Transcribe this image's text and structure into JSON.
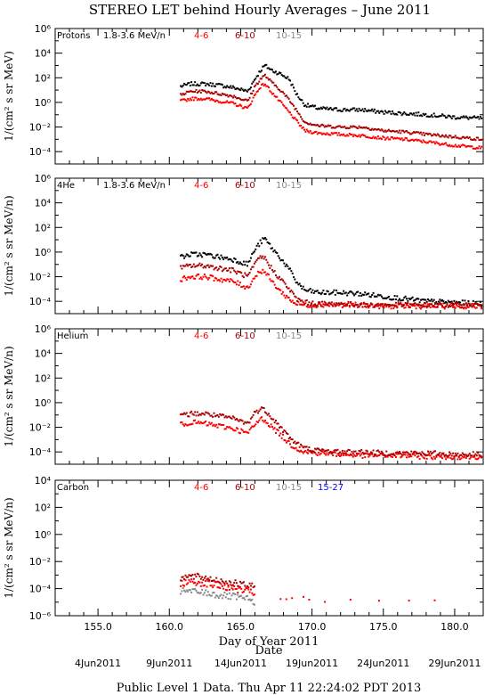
{
  "title": "STEREO LET behind Hourly Averages – June 2011",
  "footer": "Public Level 1 Data. Thu Apr 11 22:24:02 PDT 2013",
  "colors": {
    "ch1": "#000000",
    "ch2": "#ff0000",
    "ch3": "#aa0000",
    "ch4": "#888888",
    "ch5": "#0000ff"
  },
  "chart_data": [
    {
      "type": "scatter",
      "species": "Protons",
      "log_y": true,
      "ylim_exp": [
        -5,
        6
      ],
      "ytick_labels": [
        "10⁻⁴",
        "10⁻²",
        "10⁰",
        "10²",
        "10⁴",
        "10⁶"
      ],
      "ylabel": "1/(cm² s sr MeV)",
      "xlim": [
        152,
        182
      ],
      "legend": [
        {
          "label": "1.8-3.6 MeV/n",
          "color": "#000000"
        },
        {
          "label": "4-6",
          "color": "#ff0000"
        },
        {
          "label": "6-10",
          "color": "#aa0000"
        },
        {
          "label": "10-15",
          "color": "#888888"
        }
      ],
      "series": [
        {
          "name": "1.8-3.6 MeV/n",
          "color": "#000000",
          "scatter": 0.15,
          "x": [
            160.8,
            161.5,
            162.5,
            163.5,
            164.5,
            165.5,
            166.0,
            166.4,
            166.7,
            167.2,
            167.8,
            168.4,
            168.9,
            169.5,
            170.5,
            172.0,
            173.5,
            175.0,
            176.5,
            178.0,
            180.0,
            181.9
          ],
          "log10": [
            1.3,
            1.5,
            1.5,
            1.4,
            1.2,
            0.9,
            1.9,
            2.6,
            3.0,
            2.6,
            2.3,
            1.9,
            0.7,
            -0.2,
            -0.5,
            -0.6,
            -0.6,
            -0.8,
            -0.9,
            -1.0,
            -1.2,
            -1.3
          ]
        },
        {
          "name": "4-6",
          "color": "#ff0000",
          "scatter": 0.12,
          "x": [
            160.8,
            161.5,
            162.5,
            163.5,
            164.5,
            165.5,
            166.0,
            166.4,
            166.7,
            167.2,
            167.8,
            168.4,
            168.9,
            169.5,
            170.5,
            172.0,
            173.5,
            175.0,
            176.5,
            178.0,
            180.0,
            181.9
          ],
          "log10": [
            0.1,
            0.3,
            0.3,
            0.1,
            -0.1,
            -0.5,
            0.6,
            1.3,
            1.5,
            0.8,
            0.0,
            -0.8,
            -1.5,
            -2.3,
            -2.5,
            -2.6,
            -2.7,
            -2.9,
            -3.0,
            -3.2,
            -3.5,
            -3.7
          ]
        },
        {
          "name": "6-10",
          "color": "#aa0000",
          "scatter": 0.12,
          "x": [
            160.8,
            161.5,
            162.5,
            163.5,
            164.5,
            165.5,
            166.0,
            166.4,
            166.7,
            167.2,
            167.8,
            168.4,
            168.9,
            169.5,
            170.5,
            172.0,
            173.5,
            175.0,
            176.5,
            178.0,
            180.0,
            181.9
          ],
          "log10": [
            0.6,
            0.9,
            0.9,
            0.7,
            0.5,
            0.1,
            1.3,
            1.9,
            2.2,
            1.6,
            1.0,
            0.2,
            -0.6,
            -1.6,
            -1.9,
            -2.0,
            -2.0,
            -2.3,
            -2.4,
            -2.6,
            -2.8,
            -3.0
          ]
        }
      ]
    },
    {
      "type": "scatter",
      "species": "4He",
      "log_y": true,
      "ylim_exp": [
        -5,
        6
      ],
      "ytick_labels": [
        "10⁻⁴",
        "10⁻²",
        "10⁰",
        "10²",
        "10⁴",
        "10⁶"
      ],
      "ylabel": "1/(cm² s sr MeV/n)",
      "xlim": [
        152,
        182
      ],
      "legend": [
        {
          "label": "1.8-3.6 MeV/n",
          "color": "#000000"
        },
        {
          "label": "4-6",
          "color": "#ff0000"
        },
        {
          "label": "6-10",
          "color": "#aa0000"
        },
        {
          "label": "10-15",
          "color": "#888888"
        }
      ],
      "series": [
        {
          "name": "1.8-3.6 MeV/n",
          "color": "#000000",
          "scatter": 0.2,
          "x": [
            160.8,
            161.5,
            162.5,
            163.5,
            164.5,
            165.5,
            166.0,
            166.4,
            166.7,
            167.2,
            167.8,
            168.4,
            168.9,
            169.5,
            170.5,
            172.0,
            173.5,
            175.0,
            176.5,
            178.0,
            180.0,
            181.9
          ],
          "log10": [
            -0.4,
            -0.2,
            -0.2,
            -0.4,
            -0.6,
            -1.0,
            0.2,
            0.8,
            1.1,
            0.3,
            -0.5,
            -1.4,
            -2.4,
            -3.1,
            -3.3,
            -3.3,
            -3.4,
            -3.6,
            -3.8,
            -4.0,
            -4.1,
            -4.2
          ]
        },
        {
          "name": "4-6",
          "color": "#ff0000",
          "scatter": 0.2,
          "x": [
            160.8,
            161.5,
            162.5,
            163.5,
            164.5,
            165.5,
            166.0,
            166.4,
            166.7,
            167.2,
            167.8,
            168.4,
            168.9,
            169.5,
            170.5,
            172.0,
            173.5,
            175.0,
            176.5,
            178.0,
            180.0,
            181.9
          ],
          "log10": [
            -2.2,
            -2.0,
            -2.0,
            -2.2,
            -2.4,
            -2.9,
            -2.0,
            -1.5,
            -1.6,
            -2.4,
            -3.2,
            -3.8,
            -4.2,
            -4.3,
            -4.3,
            -4.3,
            -4.3,
            -4.4,
            -4.4,
            -4.4,
            -4.4,
            -4.4
          ]
        },
        {
          "name": "6-10",
          "color": "#aa0000",
          "scatter": 0.2,
          "x": [
            160.8,
            161.5,
            162.5,
            163.5,
            164.5,
            165.5,
            166.0,
            166.4,
            166.7,
            167.2,
            167.8,
            168.4,
            168.9,
            169.5,
            170.5,
            172.0,
            173.5,
            175.0,
            176.5,
            178.0,
            180.0,
            181.9
          ],
          "log10": [
            -1.3,
            -1.1,
            -1.1,
            -1.3,
            -1.5,
            -2.0,
            -1.0,
            -0.4,
            -0.5,
            -1.4,
            -2.2,
            -3.0,
            -3.8,
            -4.1,
            -4.2,
            -4.2,
            -4.3,
            -4.3,
            -4.3,
            -4.3,
            -4.3,
            -4.3
          ]
        }
      ]
    },
    {
      "type": "scatter",
      "species": "Helium",
      "log_y": true,
      "ylim_exp": [
        -5,
        6
      ],
      "ytick_labels": [
        "10⁻⁴",
        "10⁻²",
        "10⁰",
        "10²",
        "10⁴",
        "10⁶"
      ],
      "ylabel": "1/(cm² s sr MeV/n)",
      "xlim": [
        152,
        182
      ],
      "legend": [
        {
          "label": "4-6",
          "color": "#ff0000"
        },
        {
          "label": "6-10",
          "color": "#aa0000"
        },
        {
          "label": "10-15",
          "color": "#888888"
        }
      ],
      "series": [
        {
          "name": "4-6",
          "color": "#ff0000",
          "scatter": 0.2,
          "x": [
            160.8,
            161.5,
            162.5,
            163.5,
            164.5,
            165.5,
            166.0,
            166.4,
            166.7,
            167.2,
            167.8,
            168.4,
            168.9,
            169.5,
            170.5,
            172.0,
            173.5,
            175.0,
            176.5,
            178.0,
            180.0,
            181.9
          ],
          "log10": [
            -1.8,
            -1.6,
            -1.7,
            -1.9,
            -2.1,
            -2.5,
            -1.8,
            -1.3,
            -1.4,
            -2.0,
            -2.6,
            -3.3,
            -3.7,
            -4.0,
            -4.1,
            -4.2,
            -4.3,
            -4.3,
            -4.3,
            -4.4,
            -4.4,
            -4.4
          ]
        },
        {
          "name": "6-10",
          "color": "#aa0000",
          "scatter": 0.2,
          "x": [
            160.8,
            161.5,
            162.5,
            163.5,
            164.5,
            165.5,
            166.0,
            166.4,
            166.7,
            167.2,
            167.8,
            168.4,
            168.9,
            169.5,
            170.5,
            172.0,
            173.5,
            175.0,
            176.5,
            178.0,
            180.0,
            181.9
          ],
          "log10": [
            -1.1,
            -0.9,
            -0.9,
            -1.1,
            -1.3,
            -1.7,
            -0.8,
            -0.5,
            -0.6,
            -1.2,
            -2.0,
            -2.8,
            -3.3,
            -3.7,
            -3.9,
            -4.0,
            -4.0,
            -4.1,
            -4.1,
            -4.1,
            -4.2,
            -4.2
          ]
        }
      ]
    },
    {
      "type": "scatter",
      "species": "Carbon",
      "log_y": true,
      "ylim_exp": [
        -6,
        4
      ],
      "ytick_labels": [
        "10⁻⁶",
        "10⁻⁴",
        "10⁻²",
        "10⁰",
        "10²",
        "10⁴"
      ],
      "ylabel": "1/(cm² s sr MeV/n)",
      "xlim": [
        152,
        182
      ],
      "legend": [
        {
          "label": "4-6",
          "color": "#ff0000"
        },
        {
          "label": "6-10",
          "color": "#aa0000"
        },
        {
          "label": "10-15",
          "color": "#888888"
        },
        {
          "label": "15-27",
          "color": "#0000ff"
        }
      ],
      "series": [
        {
          "name": "6-10",
          "color": "#aa0000",
          "scatter": 0.25,
          "x": [
            160.8,
            161.5,
            162.5,
            163.5,
            164.5,
            165.5,
            166.0
          ],
          "log10": [
            -3.2,
            -3.1,
            -3.2,
            -3.4,
            -3.6,
            -3.8,
            -3.9
          ]
        },
        {
          "name": "4-6",
          "color": "#ff0000",
          "scatter": 0.25,
          "x": [
            160.8,
            161.5,
            162.5,
            163.5,
            164.5,
            165.5,
            166.0
          ],
          "log10": [
            -3.6,
            -3.5,
            -3.6,
            -3.8,
            -4.0,
            -4.2,
            -4.4
          ]
        },
        {
          "name": "10-15",
          "color": "#888888",
          "scatter": 0.25,
          "x": [
            160.8,
            161.5,
            162.5,
            163.5,
            164.5,
            165.5,
            166.0
          ],
          "log10": [
            -4.2,
            -4.2,
            -4.3,
            -4.5,
            -4.6,
            -4.8,
            -5.0
          ]
        },
        {
          "name": "4-6 sparse",
          "color": "#ff0000",
          "scatter": 0.1,
          "x": [
            167.8,
            168.2,
            168.6,
            169.4,
            169.8,
            170.9,
            172.7,
            174.7,
            176.8,
            178.6
          ],
          "log10": [
            -4.8,
            -4.8,
            -4.8,
            -4.6,
            -4.8,
            -4.9,
            -4.9,
            -4.8,
            -4.8,
            -4.9
          ]
        }
      ]
    }
  ],
  "xaxis": {
    "label": "Day of Year 2011",
    "sublabel": "Date",
    "ticks": [
      155,
      160,
      165,
      170,
      175,
      180
    ],
    "tick_labels": [
      "155.0",
      "160.0",
      "165.0",
      "170.0",
      "175.0",
      "180.0"
    ],
    "date_labels": [
      {
        "day": 155,
        "label": "4Jun2011"
      },
      {
        "day": 160,
        "label": "9Jun2011"
      },
      {
        "day": 165,
        "label": "14Jun2011"
      },
      {
        "day": 170,
        "label": "19Jun2011"
      },
      {
        "day": 175,
        "label": "24Jun2011"
      },
      {
        "day": 180,
        "label": "29Jun2011"
      }
    ]
  }
}
